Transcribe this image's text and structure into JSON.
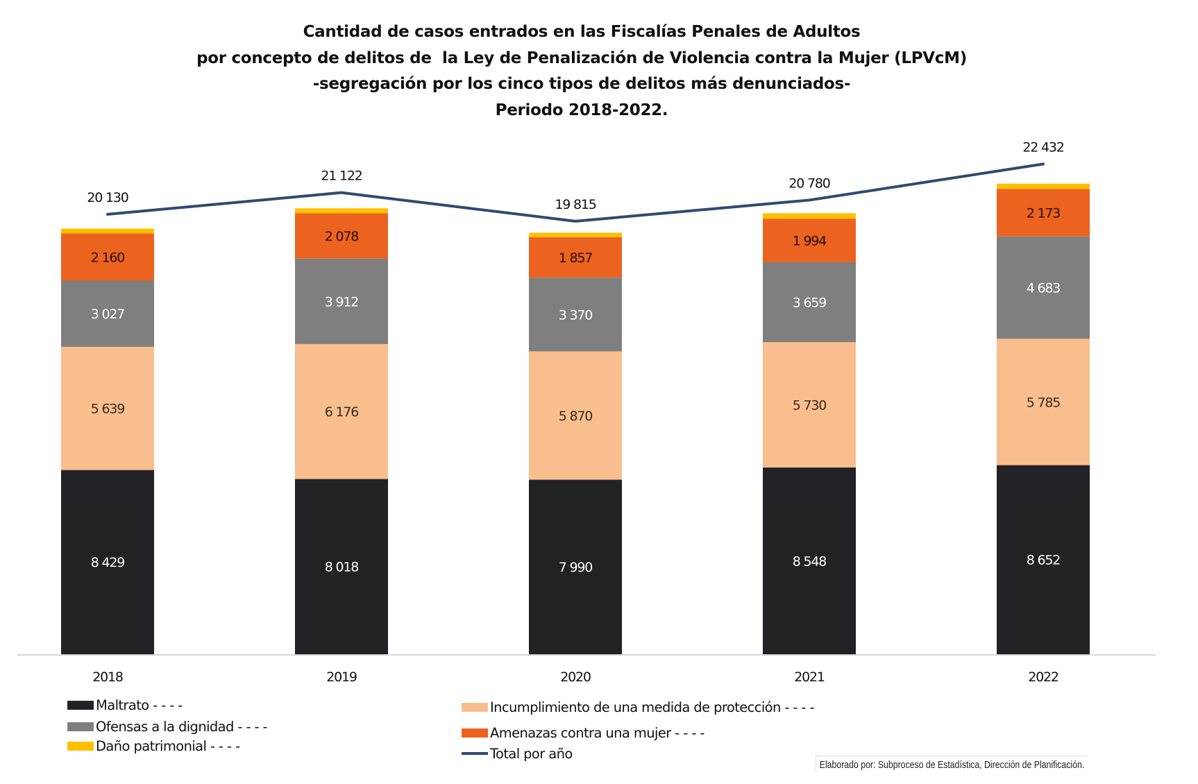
{
  "title_lines": [
    "Cantidad de casos entrados en las Fiscalías Penales de Adultos",
    "por concepto de delitos de  la Ley de Penalización de Violencia contra la Mujer (LPVcM)",
    "-segregación por los cinco tipos de delitos más denunciados-",
    "Periodo 2018-2022."
  ],
  "credit": "Elaborado por: Subproceso de Estadística, Dirección de Planificación.",
  "colors": {
    "maltrato": "#222126",
    "incumplimiento": "#F8BE8E",
    "ofensas": "#7F7F7F",
    "amenazas": "#EB631E",
    "dano": "#FFC000",
    "total": "#2E4A6E",
    "axis": "#D9D9D9"
  },
  "chart_data": {
    "type": "bar",
    "stacked": true,
    "title": "Cantidad de casos entrados en las Fiscalías Penales de Adultos por concepto de delitos de la Ley de Penalización de Violencia contra la Mujer (LPVcM) -segregación por los cinco tipos de delitos más denunciados- Periodo 2018-2022.",
    "xlabel": "",
    "ylabel": "",
    "categories": [
      "2018",
      "2019",
      "2020",
      "2021",
      "2022"
    ],
    "ylim": [
      0,
      30000
    ],
    "grid": false,
    "legend_position": "bottom",
    "series": [
      {
        "key": "maltrato",
        "name": "Maltrato - - - -",
        "label_color": "#FFFFFF",
        "values": [
          8429,
          8018,
          7990,
          8548,
          8652
        ],
        "labels": [
          "8 429",
          "8 018",
          "7 990",
          "8 548",
          "8 652"
        ]
      },
      {
        "key": "incumplimiento",
        "name": "Incumplimiento de una medida de protección - - - -",
        "label_color": "#3a2a1e",
        "values": [
          5639,
          6176,
          5870,
          5730,
          5785
        ],
        "labels": [
          "5 639",
          "6 176",
          "5 870",
          "5 730",
          "5 785"
        ]
      },
      {
        "key": "ofensas",
        "name": "Ofensas a la dignidad - - - -",
        "label_color": "#FFFFFF",
        "values": [
          3027,
          3912,
          3370,
          3659,
          4683
        ],
        "labels": [
          "3 027",
          "3 912",
          "3 370",
          "3 659",
          "4 683"
        ]
      },
      {
        "key": "amenazas",
        "name": "Amenazas contra una mujer - - - -",
        "label_color": "#2a0f05",
        "values": [
          2160,
          2078,
          1857,
          1994,
          2173
        ],
        "labels": [
          "2 160",
          "2 078",
          "1 857",
          "1 994",
          "2 173"
        ]
      },
      {
        "key": "dano",
        "name": "Daño patrimonial - - - -",
        "label_color": "",
        "values": [
          220,
          220,
          200,
          250,
          240
        ],
        "labels": [
          "",
          "",
          "",
          "",
          ""
        ]
      }
    ],
    "line_series": {
      "key": "total",
      "name": "Total por año",
      "values": [
        20130,
        21122,
        19815,
        20780,
        22432
      ],
      "labels": [
        "20 130",
        "21 122",
        "19 815",
        "20 780",
        "22 432"
      ]
    }
  },
  "legend": [
    {
      "key": "maltrato",
      "label": "Maltrato - - - -",
      "type": "box"
    },
    {
      "key": "incumplimiento",
      "label": "Incumplimiento de una medida de protección - - - -",
      "type": "box"
    },
    {
      "key": "ofensas",
      "label": "Ofensas a la dignidad - - - -",
      "type": "box"
    },
    {
      "key": "amenazas",
      "label": "Amenazas contra una mujer - - - -",
      "type": "box"
    },
    {
      "key": "dano",
      "label": "Daño patrimonial - - - -",
      "type": "box"
    },
    {
      "key": "total",
      "label": "Total por año",
      "type": "line"
    }
  ]
}
